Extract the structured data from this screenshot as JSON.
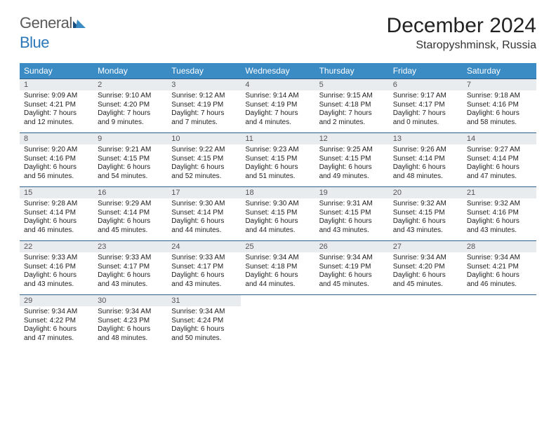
{
  "logo": {
    "text1": "General",
    "text2": "Blue"
  },
  "title": "December 2024",
  "location": "Staropyshminsk, Russia",
  "dayHeaders": [
    "Sunday",
    "Monday",
    "Tuesday",
    "Wednesday",
    "Thursday",
    "Friday",
    "Saturday"
  ],
  "colors": {
    "headerBg": "#3b8bc5",
    "headerText": "#ffffff",
    "dayNumBg": "#e9ecef",
    "borderTop": "#2c5f8d",
    "logoBlue": "#2c77b8",
    "logoGray": "#5a5a5a"
  },
  "weeks": [
    [
      {
        "n": "1",
        "sr": "Sunrise: 9:09 AM",
        "ss": "Sunset: 4:21 PM",
        "dl": "Daylight: 7 hours and 12 minutes."
      },
      {
        "n": "2",
        "sr": "Sunrise: 9:10 AM",
        "ss": "Sunset: 4:20 PM",
        "dl": "Daylight: 7 hours and 9 minutes."
      },
      {
        "n": "3",
        "sr": "Sunrise: 9:12 AM",
        "ss": "Sunset: 4:19 PM",
        "dl": "Daylight: 7 hours and 7 minutes."
      },
      {
        "n": "4",
        "sr": "Sunrise: 9:14 AM",
        "ss": "Sunset: 4:19 PM",
        "dl": "Daylight: 7 hours and 4 minutes."
      },
      {
        "n": "5",
        "sr": "Sunrise: 9:15 AM",
        "ss": "Sunset: 4:18 PM",
        "dl": "Daylight: 7 hours and 2 minutes."
      },
      {
        "n": "6",
        "sr": "Sunrise: 9:17 AM",
        "ss": "Sunset: 4:17 PM",
        "dl": "Daylight: 7 hours and 0 minutes."
      },
      {
        "n": "7",
        "sr": "Sunrise: 9:18 AM",
        "ss": "Sunset: 4:16 PM",
        "dl": "Daylight: 6 hours and 58 minutes."
      }
    ],
    [
      {
        "n": "8",
        "sr": "Sunrise: 9:20 AM",
        "ss": "Sunset: 4:16 PM",
        "dl": "Daylight: 6 hours and 56 minutes."
      },
      {
        "n": "9",
        "sr": "Sunrise: 9:21 AM",
        "ss": "Sunset: 4:15 PM",
        "dl": "Daylight: 6 hours and 54 minutes."
      },
      {
        "n": "10",
        "sr": "Sunrise: 9:22 AM",
        "ss": "Sunset: 4:15 PM",
        "dl": "Daylight: 6 hours and 52 minutes."
      },
      {
        "n": "11",
        "sr": "Sunrise: 9:23 AM",
        "ss": "Sunset: 4:15 PM",
        "dl": "Daylight: 6 hours and 51 minutes."
      },
      {
        "n": "12",
        "sr": "Sunrise: 9:25 AM",
        "ss": "Sunset: 4:15 PM",
        "dl": "Daylight: 6 hours and 49 minutes."
      },
      {
        "n": "13",
        "sr": "Sunrise: 9:26 AM",
        "ss": "Sunset: 4:14 PM",
        "dl": "Daylight: 6 hours and 48 minutes."
      },
      {
        "n": "14",
        "sr": "Sunrise: 9:27 AM",
        "ss": "Sunset: 4:14 PM",
        "dl": "Daylight: 6 hours and 47 minutes."
      }
    ],
    [
      {
        "n": "15",
        "sr": "Sunrise: 9:28 AM",
        "ss": "Sunset: 4:14 PM",
        "dl": "Daylight: 6 hours and 46 minutes."
      },
      {
        "n": "16",
        "sr": "Sunrise: 9:29 AM",
        "ss": "Sunset: 4:14 PM",
        "dl": "Daylight: 6 hours and 45 minutes."
      },
      {
        "n": "17",
        "sr": "Sunrise: 9:30 AM",
        "ss": "Sunset: 4:14 PM",
        "dl": "Daylight: 6 hours and 44 minutes."
      },
      {
        "n": "18",
        "sr": "Sunrise: 9:30 AM",
        "ss": "Sunset: 4:15 PM",
        "dl": "Daylight: 6 hours and 44 minutes."
      },
      {
        "n": "19",
        "sr": "Sunrise: 9:31 AM",
        "ss": "Sunset: 4:15 PM",
        "dl": "Daylight: 6 hours and 43 minutes."
      },
      {
        "n": "20",
        "sr": "Sunrise: 9:32 AM",
        "ss": "Sunset: 4:15 PM",
        "dl": "Daylight: 6 hours and 43 minutes."
      },
      {
        "n": "21",
        "sr": "Sunrise: 9:32 AM",
        "ss": "Sunset: 4:16 PM",
        "dl": "Daylight: 6 hours and 43 minutes."
      }
    ],
    [
      {
        "n": "22",
        "sr": "Sunrise: 9:33 AM",
        "ss": "Sunset: 4:16 PM",
        "dl": "Daylight: 6 hours and 43 minutes."
      },
      {
        "n": "23",
        "sr": "Sunrise: 9:33 AM",
        "ss": "Sunset: 4:17 PM",
        "dl": "Daylight: 6 hours and 43 minutes."
      },
      {
        "n": "24",
        "sr": "Sunrise: 9:33 AM",
        "ss": "Sunset: 4:17 PM",
        "dl": "Daylight: 6 hours and 43 minutes."
      },
      {
        "n": "25",
        "sr": "Sunrise: 9:34 AM",
        "ss": "Sunset: 4:18 PM",
        "dl": "Daylight: 6 hours and 44 minutes."
      },
      {
        "n": "26",
        "sr": "Sunrise: 9:34 AM",
        "ss": "Sunset: 4:19 PM",
        "dl": "Daylight: 6 hours and 45 minutes."
      },
      {
        "n": "27",
        "sr": "Sunrise: 9:34 AM",
        "ss": "Sunset: 4:20 PM",
        "dl": "Daylight: 6 hours and 45 minutes."
      },
      {
        "n": "28",
        "sr": "Sunrise: 9:34 AM",
        "ss": "Sunset: 4:21 PM",
        "dl": "Daylight: 6 hours and 46 minutes."
      }
    ],
    [
      {
        "n": "29",
        "sr": "Sunrise: 9:34 AM",
        "ss": "Sunset: 4:22 PM",
        "dl": "Daylight: 6 hours and 47 minutes."
      },
      {
        "n": "30",
        "sr": "Sunrise: 9:34 AM",
        "ss": "Sunset: 4:23 PM",
        "dl": "Daylight: 6 hours and 48 minutes."
      },
      {
        "n": "31",
        "sr": "Sunrise: 9:34 AM",
        "ss": "Sunset: 4:24 PM",
        "dl": "Daylight: 6 hours and 50 minutes."
      },
      null,
      null,
      null,
      null
    ]
  ]
}
